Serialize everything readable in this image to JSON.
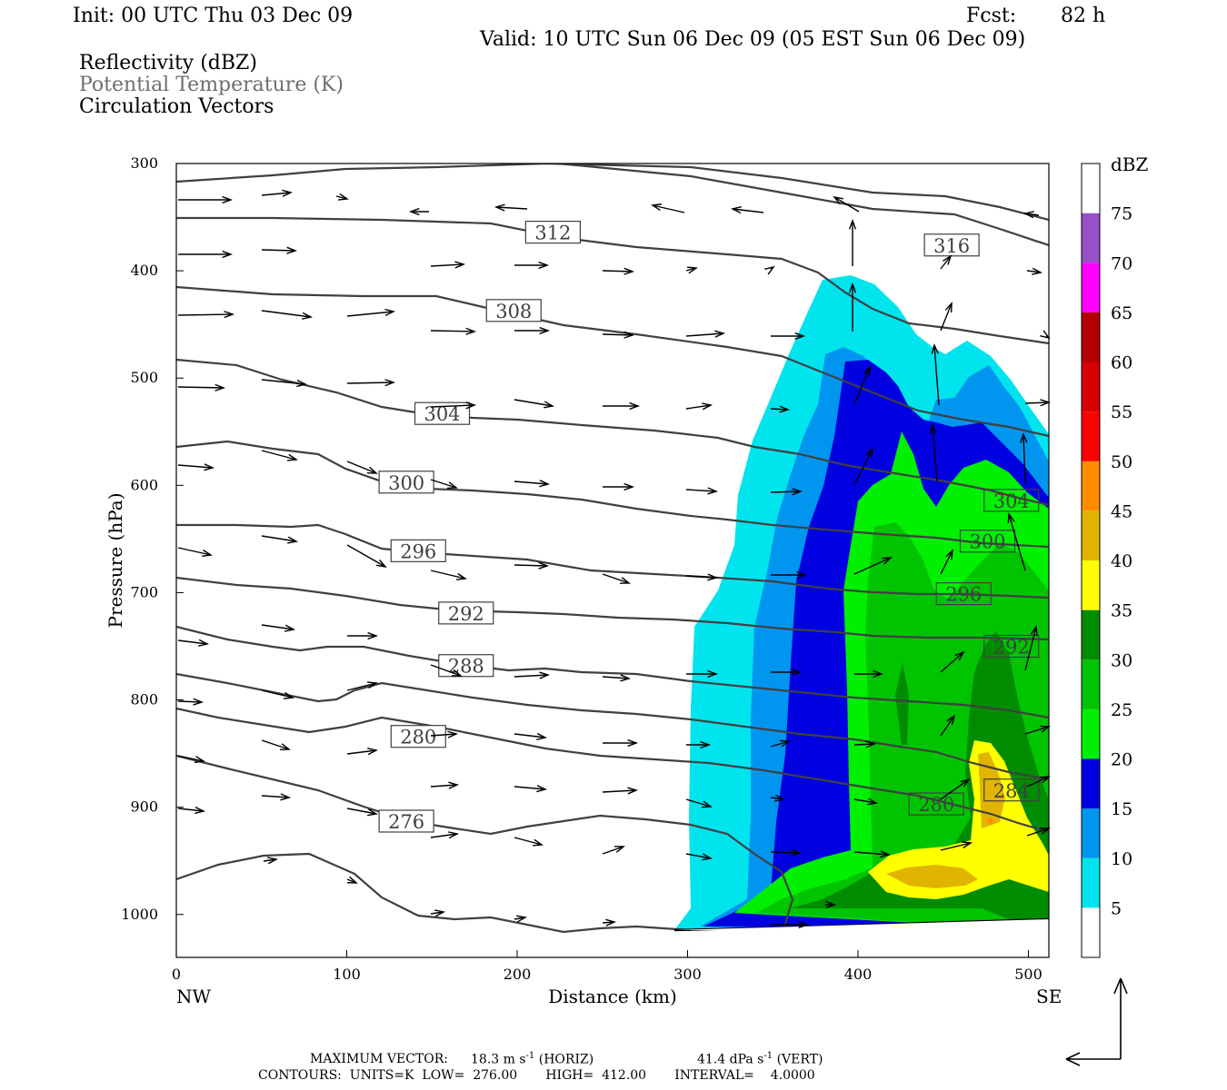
{
  "header": {
    "init": "Init: 00 UTC Thu 03 Dec 09",
    "fcst_label": "Fcst:",
    "fcst_value": "82 h",
    "valid": "Valid: 10 UTC Sun 06 Dec 09 (05 EST Sun 06 Dec 09)",
    "field1": "Reflectivity (dBZ)",
    "field2": "Potential Temperature (K)",
    "field3": "Circulation Vectors"
  },
  "chart_data": {
    "type": "cross-section",
    "xlabel": "Distance (km)",
    "ylabel": "Pressure (hPa)",
    "xlim": [
      0,
      512
    ],
    "ylim": [
      1040,
      300
    ],
    "x_ticks": [
      "0",
      "100",
      "200",
      "300",
      "400",
      "500"
    ],
    "x_tick_values": [
      0,
      100,
      200,
      300,
      400,
      500
    ],
    "y_ticks": [
      "300",
      "400",
      "500",
      "600",
      "700",
      "800",
      "900",
      "1000"
    ],
    "y_tick_values": [
      300,
      400,
      500,
      600,
      700,
      800,
      900,
      1000
    ],
    "left_end_label": "NW",
    "right_end_label": "SE",
    "colorbar": {
      "unit": "dBZ",
      "levels": [
        "5",
        "10",
        "15",
        "20",
        "25",
        "30",
        "35",
        "40",
        "45",
        "50",
        "55",
        "60",
        "65",
        "70",
        "75"
      ],
      "colors": [
        "#ffffff",
        "#00e4ee",
        "#0096f0",
        "#0000e0",
        "#00f000",
        "#00c400",
        "#008c00",
        "#ffff00",
        "#e0b400",
        "#ff8c00",
        "#ff0000",
        "#d80000",
        "#b40000",
        "#ff00ff",
        "#9650c8",
        "#ffffff"
      ]
    },
    "theta_contours": {
      "units": "K",
      "low": 276,
      "high": 412,
      "interval": 4,
      "labels": [
        {
          "text": "312",
          "x": 221,
          "p": 364
        },
        {
          "text": "316",
          "x": 455,
          "p": 376
        },
        {
          "text": "308",
          "x": 198,
          "p": 437
        },
        {
          "text": "304",
          "x": 156,
          "p": 533
        },
        {
          "text": "300",
          "x": 135,
          "p": 597
        },
        {
          "text": "296",
          "x": 142,
          "p": 661
        },
        {
          "text": "292",
          "x": 170,
          "p": 719
        },
        {
          "text": "288",
          "x": 170,
          "p": 768
        },
        {
          "text": "280",
          "x": 142,
          "p": 834
        },
        {
          "text": "276",
          "x": 135,
          "p": 913
        },
        {
          "text": "304",
          "x": 490,
          "p": 614
        },
        {
          "text": "300",
          "x": 476,
          "p": 652
        },
        {
          "text": "296",
          "x": 462,
          "p": 701
        },
        {
          "text": "292",
          "x": 490,
          "p": 750
        },
        {
          "text": "284",
          "x": 490,
          "p": 884
        },
        {
          "text": "280",
          "x": 446,
          "p": 897
        }
      ]
    },
    "footer": {
      "max_vector_label": "MAXIMUM VECTOR:",
      "max_horiz": "18.3 m s",
      "max_horiz_unit": "(HORIZ)",
      "max_vert": "41.4 dPa s",
      "max_vert_unit": "(VERT)",
      "exp": "-1",
      "contours": "CONTOURS:  UNITS=K  LOW=  276.00       HIGH=  412.00       INTERVAL=    4.0000"
    }
  }
}
